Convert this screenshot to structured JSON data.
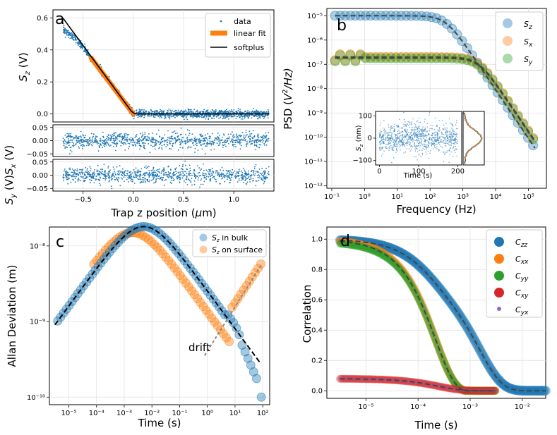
{
  "colors": {
    "blue": "#1f77b4",
    "orange": "#ff7f0e",
    "green": "#2ca02c",
    "red": "#d62728",
    "purple": "#9467bd",
    "fit": "#444444",
    "drift": "#888888"
  },
  "chart_data": [
    {
      "id": "a",
      "type": "scatter",
      "panel_label": "a",
      "subplots": [
        {
          "ylabel": "S_z (V)",
          "ylim": [
            -0.05,
            0.65
          ],
          "yticks": [
            "0.0",
            "0.2",
            "0.4",
            "0.6"
          ],
          "series": [
            {
              "name": "data",
              "style": "points"
            },
            {
              "name": "linear fit",
              "style": "thick-line",
              "x": [
                -0.42,
                0.0
              ],
              "y": [
                0.35,
                0.0
              ]
            },
            {
              "name": "softplus",
              "style": "line",
              "x": [
                -0.7,
                0.0,
                1.35
              ],
              "y": [
                0.6,
                0.0,
                0.0
              ]
            }
          ]
        },
        {
          "ylabel": "S_x (V)",
          "ylim": [
            -0.06,
            0.06
          ],
          "yticks": [
            "0.00",
            "-0.05"
          ],
          "top_tick": "0.05",
          "noise_std": 0.015
        },
        {
          "ylabel": "S_y (V)",
          "ylim": [
            -0.06,
            0.06
          ],
          "yticks": [
            "0.00",
            "-0.05"
          ],
          "top_tick": "0.05",
          "noise_std": 0.015
        }
      ],
      "xlabel": "Trap z position (μm)",
      "xlim": [
        -0.8,
        1.4
      ],
      "xticks": [
        "-0.5",
        "0.0",
        "0.5",
        "1.0"
      ],
      "legend": [
        "data",
        "linear fit",
        "softplus"
      ]
    },
    {
      "id": "b",
      "type": "scatter",
      "panel_label": "b",
      "xscale": "log",
      "yscale": "log",
      "xlabel": "Frequency (Hz)",
      "ylabel": "PSD (V²/Hz)",
      "xlim_exp": [
        -1,
        5.5
      ],
      "ylim_exp": [
        -12,
        -5
      ],
      "xticks": [
        "10⁻¹",
        "10⁰",
        "10¹",
        "10²",
        "10³",
        "10⁴",
        "10⁵"
      ],
      "yticks": [
        "10⁻¹²",
        "10⁻¹¹",
        "10⁻¹⁰",
        "10⁻⁹",
        "10⁻⁸",
        "10⁻⁷",
        "10⁻⁶",
        "10⁻⁵"
      ],
      "series": [
        {
          "name": "S_z",
          "plateau": 1e-05,
          "corner_hz": 300
        },
        {
          "name": "S_x",
          "plateau": 2e-07,
          "corner_hz": 3000
        },
        {
          "name": "S_y",
          "plateau": 1.8e-07,
          "corner_hz": 3000
        }
      ],
      "legend": [
        "S_z",
        "S_x",
        "S_y"
      ],
      "inset": {
        "xlabel": "Time (s)",
        "ylabel": "S_z (nm)",
        "xticks": [
          "0",
          "100",
          "200"
        ],
        "yticks": [
          "100",
          "0",
          "-100"
        ],
        "xlim": [
          0,
          200
        ],
        "ylim": [
          -120,
          120
        ]
      }
    },
    {
      "id": "c",
      "type": "scatter",
      "panel_label": "c",
      "xscale": "log",
      "yscale": "log",
      "xlabel": "Time (s)",
      "ylabel": "Allan Deviation (m)",
      "xlim_exp": [
        -5.6,
        2.2
      ],
      "ylim_exp": [
        -10.05,
        -7.75
      ],
      "xticks": [
        "10⁻⁵",
        "10⁻⁴",
        "10⁻³",
        "10⁻²",
        "10⁻¹",
        "10⁰",
        "10¹",
        "10²"
      ],
      "yticks": [
        "10⁻¹⁰",
        "10⁻⁹",
        "10⁻⁸"
      ],
      "series": [
        {
          "name": "S_z in bulk",
          "peak_tau": 0.005,
          "peak": 1.8e-08
        },
        {
          "name": "S_z on surface",
          "peak_tau": 0.002,
          "peak": 1.5e-08
        }
      ],
      "legend": [
        "S_z in bulk",
        "S_z on surface"
      ],
      "annotation": "drift"
    },
    {
      "id": "d",
      "type": "scatter",
      "panel_label": "d",
      "xscale": "log",
      "xlabel": "Time (s)",
      "ylabel": "Correlation",
      "xlim_exp": [
        -5.7,
        -1.6
      ],
      "ylim": [
        -0.05,
        1.08
      ],
      "xticks": [
        "10⁻⁵",
        "10⁻⁴",
        "10⁻³",
        "10⁻²"
      ],
      "yticks": [
        "0.0",
        "0.2",
        "0.4",
        "0.6",
        "0.8",
        "1.0"
      ],
      "series": [
        {
          "name": "C_zz",
          "start": 1.0
        },
        {
          "name": "C_xx",
          "start": 1.0
        },
        {
          "name": "C_yy",
          "start": 1.0
        },
        {
          "name": "C_xy",
          "start": 0.08
        },
        {
          "name": "C_yx",
          "start": 0.08
        }
      ],
      "legend": [
        "C_zz",
        "C_xx",
        "C_yy",
        "C_xy",
        "C_yx"
      ]
    }
  ],
  "text": {
    "a_letter": "a",
    "b_letter": "b",
    "c_letter": "c",
    "d_letter": "d",
    "a_xlabel": "Trap z position (",
    "a_xlabel_mu": "μ",
    "a_xlabel_end": "m)",
    "a_y1_main": "S",
    "a_y1_sub": "z",
    "a_y1_unit": " (V)",
    "a_y2_label": "S",
    "a_y2_sub": "x",
    "a_y3_sub": "y",
    "a_unit": " (V)",
    "a_leg_data": "data",
    "a_leg_linear": "linear fit",
    "a_leg_softplus": "softplus",
    "b_xlabel": "Frequency (Hz)",
    "b_ylabel_a": "PSD (",
    "b_ylabel_v": "V",
    "b_ylabel_sup": "2",
    "b_ylabel_b": "/Hz)",
    "b_inset_xlabel": "Time (s)",
    "b_inset_ylabel_s": "S",
    "b_inset_ylabel_sub": "z",
    "b_inset_ylabel_unit": " (nm)",
    "c_xlabel": "Time (s)",
    "c_ylabel": "Allan Deviation (m)",
    "c_leg1_s": "S",
    "c_leg1_sub": "z",
    "c_leg1_rest": " in bulk",
    "c_leg2_rest": " on surface",
    "c_drift": "drift",
    "d_xlabel": "Time (s)",
    "d_ylabel": "Correlation"
  }
}
